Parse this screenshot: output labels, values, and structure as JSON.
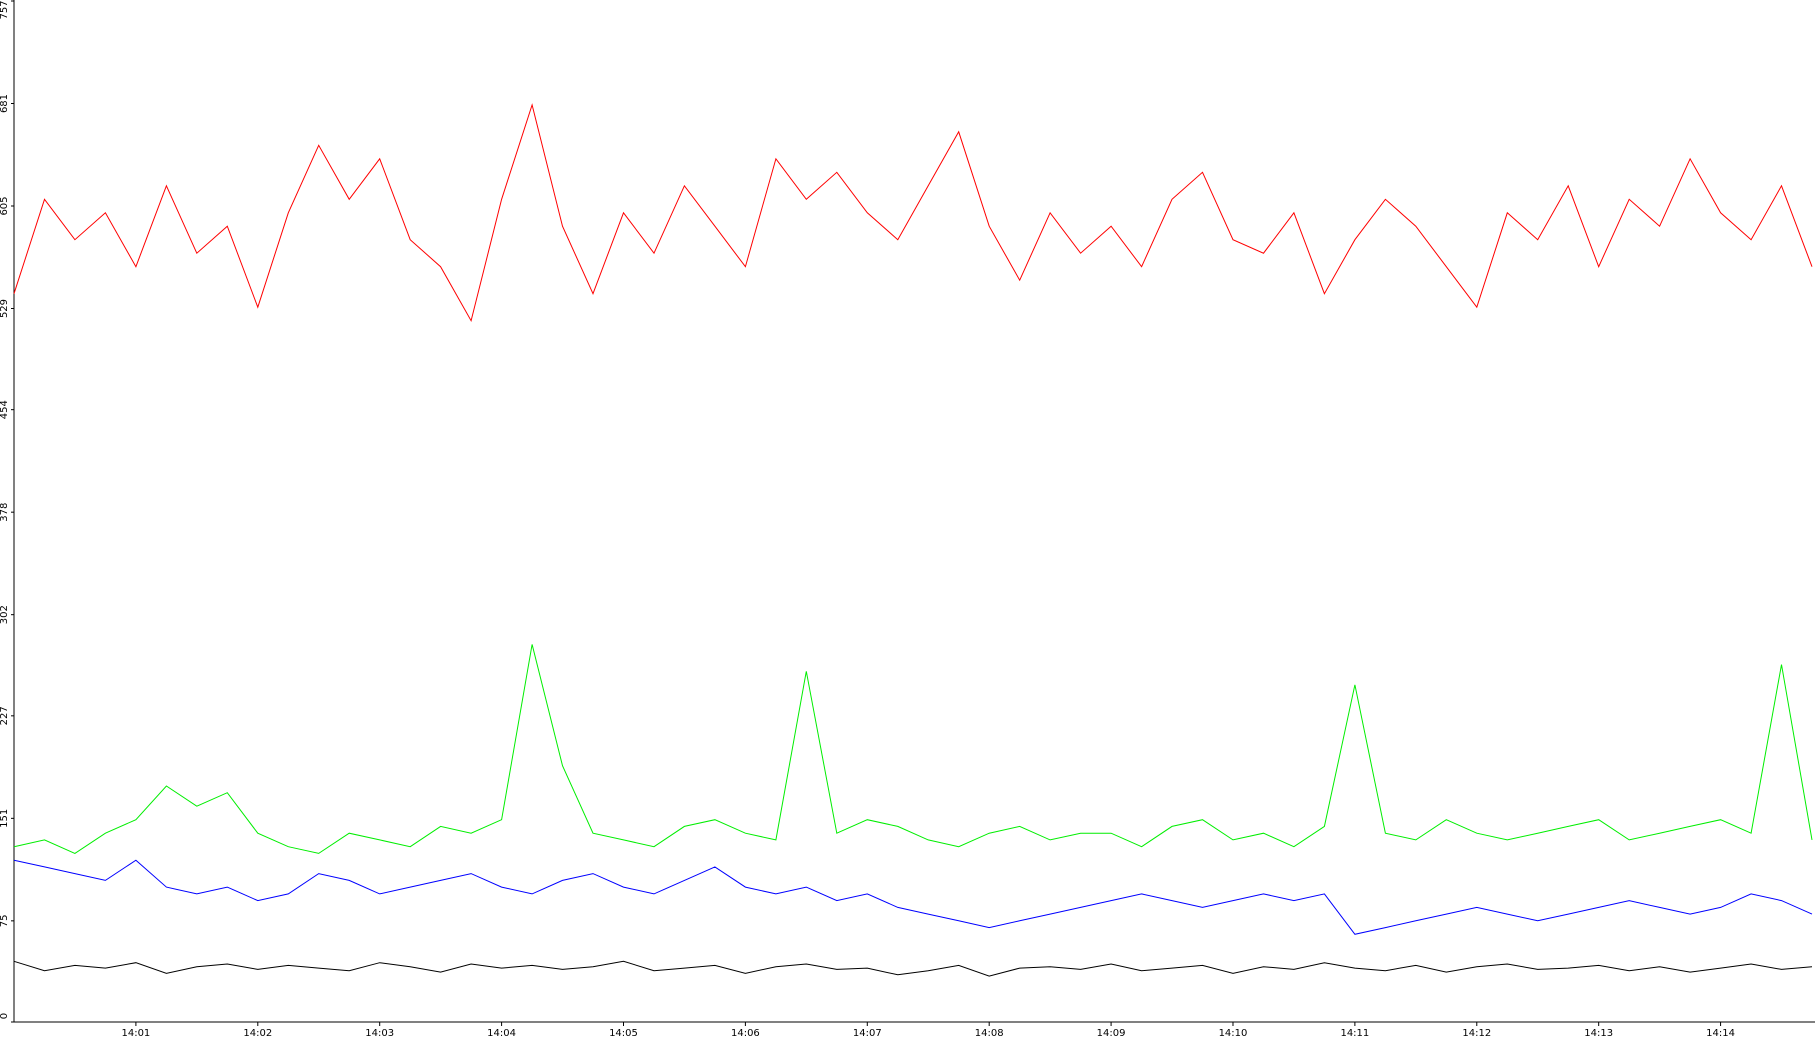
{
  "chart_data": {
    "type": "line",
    "categories": [
      null,
      null,
      null,
      null,
      "14:01",
      null,
      null,
      null,
      "14:02",
      null,
      null,
      null,
      "14:03",
      null,
      null,
      null,
      "14:04",
      null,
      null,
      null,
      "14:05",
      null,
      null,
      null,
      "14:06",
      null,
      null,
      null,
      "14:07",
      null,
      null,
      null,
      "14:08",
      null,
      null,
      null,
      "14:09",
      null,
      null,
      null,
      "14:10",
      null,
      null,
      null,
      "14:11",
      null,
      null,
      null,
      "14:12",
      null,
      null,
      null,
      "14:13",
      null,
      null,
      null,
      "14:14",
      null,
      null,
      null
    ],
    "ylim": [
      0,
      757
    ],
    "yticks": [
      0,
      75,
      151,
      227,
      302,
      378,
      454,
      529,
      605,
      681,
      757
    ],
    "series": [
      {
        "color": "#ff0000",
        "values": [
          540,
          610,
          580,
          600,
          560,
          620,
          570,
          590,
          530,
          600,
          650,
          610,
          640,
          580,
          560,
          520,
          610,
          680,
          590,
          540,
          600,
          570,
          620,
          590,
          560,
          640,
          610,
          630,
          600,
          580,
          620,
          660,
          590,
          550,
          600,
          570,
          590,
          560,
          610,
          630,
          580,
          570,
          600,
          540,
          580,
          610,
          590,
          560,
          530,
          600,
          580,
          620,
          560,
          610,
          590,
          640,
          600,
          580,
          620,
          560
        ]
      },
      {
        "color": "#00ee00",
        "values": [
          130,
          135,
          125,
          140,
          150,
          175,
          160,
          170,
          140,
          130,
          125,
          140,
          135,
          130,
          145,
          140,
          150,
          280,
          190,
          140,
          135,
          130,
          145,
          150,
          140,
          135,
          260,
          140,
          150,
          145,
          135,
          130,
          140,
          145,
          135,
          140,
          140,
          130,
          145,
          150,
          135,
          140,
          130,
          145,
          250,
          140,
          135,
          150,
          140,
          135,
          140,
          145,
          150,
          135,
          140,
          145,
          150,
          140,
          265,
          135
        ]
      },
      {
        "color": "#0000ff",
        "values": [
          120,
          115,
          110,
          105,
          120,
          100,
          95,
          100,
          90,
          95,
          110,
          105,
          95,
          100,
          105,
          110,
          100,
          95,
          105,
          110,
          100,
          95,
          105,
          115,
          100,
          95,
          100,
          90,
          95,
          85,
          80,
          75,
          70,
          75,
          80,
          85,
          90,
          95,
          90,
          85,
          90,
          95,
          90,
          95,
          65,
          70,
          75,
          80,
          85,
          80,
          75,
          80,
          85,
          90,
          85,
          80,
          85,
          95,
          90,
          80
        ]
      },
      {
        "color": "#000000",
        "values": [
          45,
          38,
          42,
          40,
          44,
          36,
          41,
          43,
          39,
          42,
          40,
          38,
          44,
          41,
          37,
          43,
          40,
          42,
          39,
          41,
          45,
          38,
          40,
          42,
          36,
          41,
          43,
          39,
          40,
          35,
          38,
          42,
          34,
          40,
          41,
          39,
          43,
          38,
          40,
          42,
          36,
          41,
          39,
          44,
          40,
          38,
          42,
          37,
          41,
          43,
          39,
          40,
          42,
          38,
          41,
          37,
          40,
          43,
          39,
          41
        ]
      }
    ]
  }
}
